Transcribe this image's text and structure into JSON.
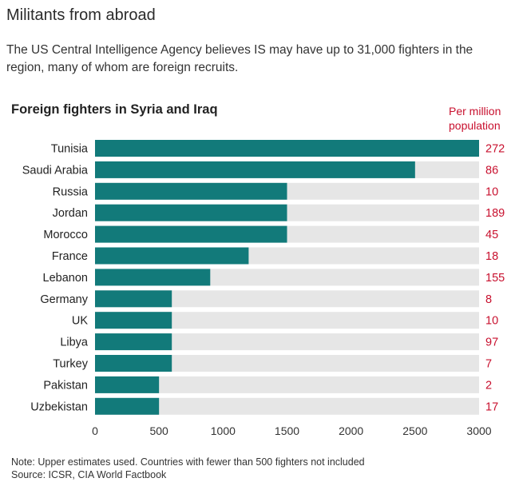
{
  "header": {
    "title": "Militants from abroad",
    "intro": "The US Central Intelligence Agency believes IS may have up to 31,000 fighters in the region, many of whom are foreign recruits."
  },
  "chart_data": {
    "type": "bar",
    "orientation": "horizontal",
    "title": "Foreign fighters in Syria and Iraq",
    "right_column_header": [
      "Per million",
      "population"
    ],
    "categories": [
      "Tunisia",
      "Saudi Arabia",
      "Russia",
      "Jordan",
      "Morocco",
      "France",
      "Lebanon",
      "Germany",
      "UK",
      "Libya",
      "Turkey",
      "Pakistan",
      "Uzbekistan"
    ],
    "values": [
      3000,
      2500,
      1500,
      1500,
      1500,
      1200,
      900,
      600,
      600,
      600,
      600,
      500,
      500
    ],
    "per_million": [
      "272",
      "86",
      "10",
      "189",
      "45",
      "18",
      "155",
      "8",
      "10",
      "97",
      "7",
      "2",
      "17"
    ],
    "xlim": [
      0,
      3000
    ],
    "xticks": [
      "0",
      "500",
      "1000",
      "1500",
      "2000",
      "2500",
      "3000"
    ],
    "tick_values": [
      0,
      500,
      1000,
      1500,
      2000,
      2500,
      3000
    ],
    "bar_color": "#127a7a",
    "track_color": "#e6e6e6",
    "accent_color": "#c8102e",
    "grid": false
  },
  "footer": {
    "note": "Note: Upper estimates used. Countries with fewer than 500 fighters not included",
    "source": "Source: ICSR, CIA World Factbook"
  }
}
